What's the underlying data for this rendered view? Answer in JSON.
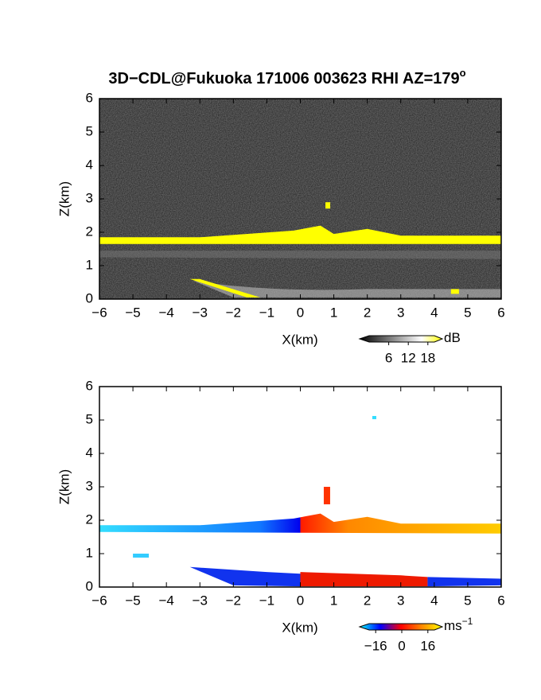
{
  "title": "3D−CDL@Fukuoka 171006 003623 RHI AZ=179",
  "title_superscript": "o",
  "chart_data": [
    {
      "type": "rhi",
      "xlabel": "X(km)",
      "ylabel": "Z(km)",
      "xlim": [
        -6,
        6
      ],
      "ylim": [
        0,
        6
      ],
      "xticks": [
        {
          "value": -6,
          "label": "−6"
        },
        {
          "value": -5,
          "label": "−5"
        },
        {
          "value": -4,
          "label": "−4"
        },
        {
          "value": -3,
          "label": "−3"
        },
        {
          "value": -2,
          "label": "−2"
        },
        {
          "value": -1,
          "label": "−1"
        },
        0,
        1,
        2,
        3,
        4,
        5,
        6
      ],
      "yticks": [
        0,
        1,
        2,
        3,
        4,
        5,
        6
      ],
      "colorbar": {
        "unit": "dB",
        "clim": [
          0,
          20
        ],
        "ticks": [
          6,
          12,
          18
        ],
        "colors": [
          "#000000",
          "#555555",
          "#aaaaaa",
          "#ffffff",
          "#ffff00"
        ]
      }
    },
    {
      "type": "rhi",
      "xlabel": "X(km)",
      "ylabel": "Z(km)",
      "xlim": [
        -6,
        6
      ],
      "ylim": [
        0,
        6
      ],
      "xticks": [
        {
          "value": -6,
          "label": "−6"
        },
        {
          "value": -5,
          "label": "−5"
        },
        {
          "value": -4,
          "label": "−4"
        },
        {
          "value": -3,
          "label": "−3"
        },
        {
          "value": -2,
          "label": "−2"
        },
        {
          "value": -1,
          "label": "−1"
        },
        0,
        1,
        2,
        3,
        4,
        5,
        6
      ],
      "yticks": [
        0,
        1,
        2,
        3,
        4,
        5,
        6
      ],
      "colorbar": {
        "unit": "ms",
        "unit_exponent": "−1",
        "clim": [
          -20,
          20
        ],
        "ticks": [
          {
            "value": -16,
            "label": "−16"
          },
          0,
          16
        ],
        "colors": [
          "#00ffff",
          "#0000ff",
          "#ff0000",
          "#ff8800",
          "#ffff00"
        ]
      }
    }
  ]
}
